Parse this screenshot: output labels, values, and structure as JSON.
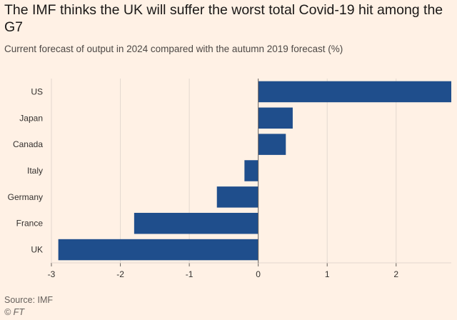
{
  "header": {
    "title": "The IMF thinks the UK will suffer the worst total Covid-19 hit among the G7",
    "subtitle": "Current forecast of output in 2024 compared with the autumn 2019 forecast (%)"
  },
  "footer": {
    "source": "Source: IMF",
    "credit": "© FT"
  },
  "colors": {
    "background": "#fff1e5",
    "bar": "#1f4e8c",
    "grid": "#e3d8cf",
    "zero_line": "#66605c"
  },
  "chart_data": {
    "type": "bar",
    "orientation": "horizontal",
    "categories": [
      "US",
      "Japan",
      "Canada",
      "Italy",
      "Germany",
      "France",
      "UK"
    ],
    "values": [
      2.8,
      0.5,
      0.4,
      -0.2,
      -0.6,
      -1.8,
      -2.9
    ],
    "xlim": [
      -3,
      2.8
    ],
    "xticks": [
      -3,
      -2,
      -1,
      0,
      1,
      2
    ],
    "xtick_labels": [
      "-3",
      "-2",
      "-1",
      "0",
      "1",
      "2"
    ],
    "grid": true,
    "title": "The IMF thinks the UK will suffer the worst total Covid-19 hit among the G7",
    "subtitle": "Current forecast of output in 2024 compared with the autumn 2019 forecast (%)",
    "xlabel": "",
    "ylabel": ""
  }
}
